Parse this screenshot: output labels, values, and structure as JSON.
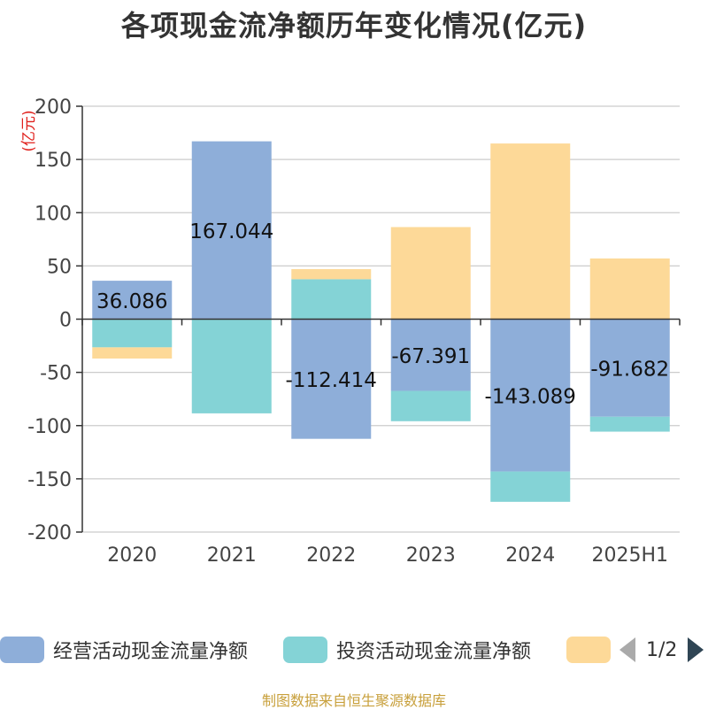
{
  "title": "各项现金流净额历年变化情况(亿元)",
  "source": "制图数据来自恒生聚源数据库",
  "pager": {
    "text": "1/2"
  },
  "colors": {
    "operating": "#8eaed9",
    "investing": "#84d3d6",
    "financing": "#fdd998",
    "axis": "#333333",
    "grid": "#cccccc",
    "unit_label": "#e0201c"
  },
  "chart_data": {
    "type": "bar",
    "stacked": true,
    "unit_label": "(亿元)",
    "categories": [
      "2020",
      "2021",
      "2022",
      "2023",
      "2024",
      "2025H1"
    ],
    "ylim": [
      -200,
      200
    ],
    "yticks": [
      200,
      150,
      100,
      50,
      0,
      -50,
      -100,
      -150,
      -200
    ],
    "grid": true,
    "legend_position": "bottom",
    "series": [
      {
        "name": "经营活动现金流量净额",
        "color_key": "operating",
        "values": [
          36.086,
          167.044,
          -112.414,
          -67.391,
          -143.089,
          -91.682
        ],
        "labels": [
          "36.086",
          "167.044",
          "-112.414",
          "-67.391",
          "-143.089",
          "-91.682"
        ]
      },
      {
        "name": "投资活动现金流量净额",
        "color_key": "investing",
        "values": [
          -26.5,
          -88.5,
          37.5,
          -28.5,
          -28.5,
          -14
        ]
      },
      {
        "name": "",
        "color_key": "financing",
        "values": [
          -10.5,
          0,
          9.5,
          86.5,
          165,
          57
        ]
      }
    ]
  }
}
